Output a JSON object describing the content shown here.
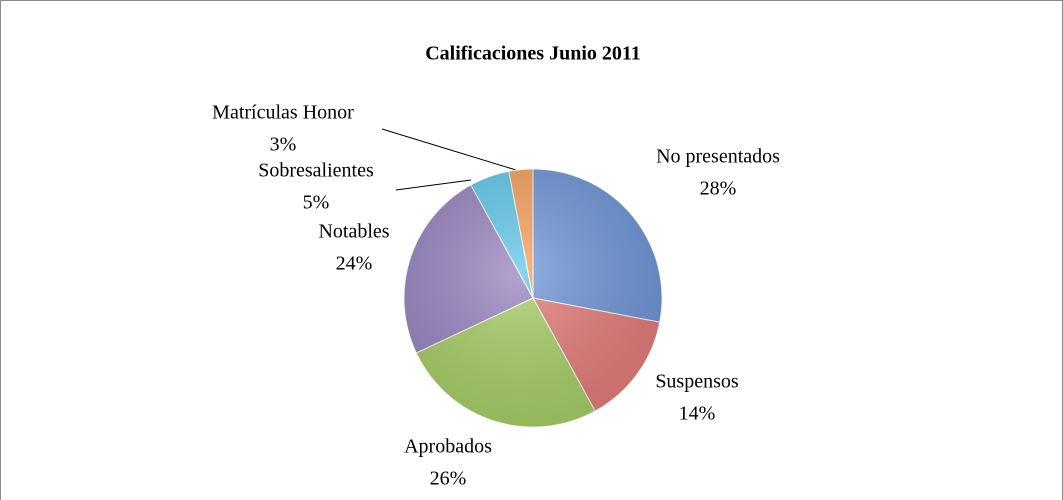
{
  "chart_data": {
    "type": "pie",
    "title": "Calificaciones Junio 2011",
    "categories": [
      "No presentados",
      "Suspensos",
      "Aprobados",
      "Notables",
      "Sobresalientes",
      "Matrículas Honor"
    ],
    "values": [
      28,
      14,
      26,
      24,
      5,
      3
    ],
    "value_labels": [
      "28%",
      "14%",
      "26%",
      "24%",
      "5%",
      "3%"
    ],
    "colors": [
      "#6f96d9",
      "#e57d7b",
      "#a9d067",
      "#9a86c2",
      "#62c9ea",
      "#f7a25c"
    ]
  }
}
